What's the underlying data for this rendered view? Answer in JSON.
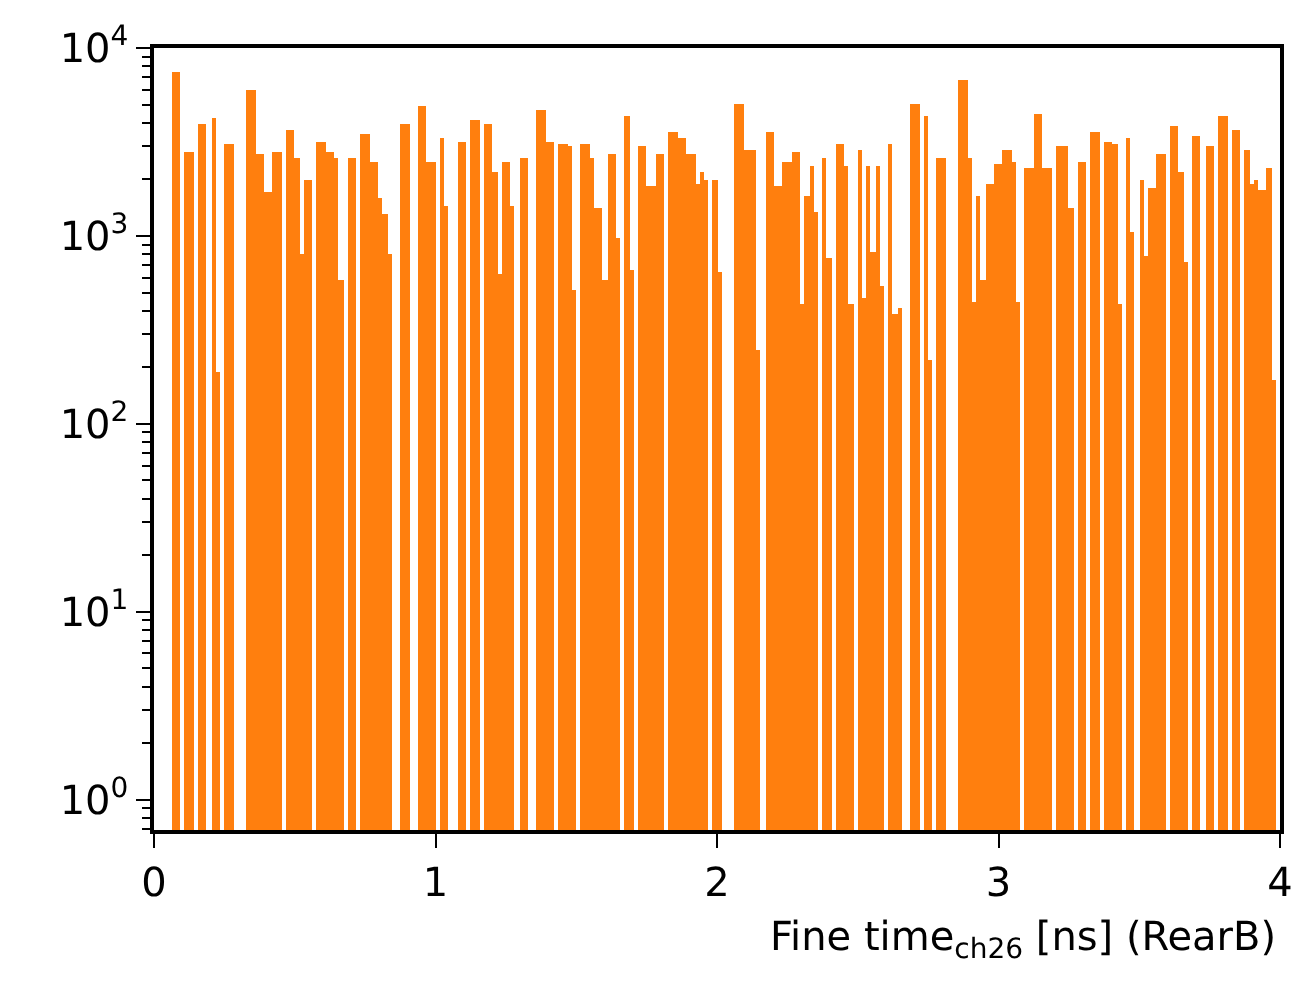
{
  "chart_data": {
    "type": "histogram",
    "xlabel": "Fine time$_{ch26}$ [ns] (RearB)",
    "color": "#ff7f0e",
    "log": "y",
    "xlim": [
      0,
      4
    ],
    "xticks": [
      0,
      1,
      2,
      3,
      4
    ],
    "ylim": [
      0.69,
      10000
    ],
    "yticks": [
      {
        "value": 1,
        "label": "10$^{0}$"
      },
      {
        "value": 10,
        "label": "10$^{1}$"
      },
      {
        "value": 100,
        "label": "10$^{2}$"
      },
      {
        "value": 1000,
        "label": "10$^{3}$"
      },
      {
        "value": 10000,
        "label": "10$^{4}$"
      }
    ],
    "bins": [
      0,
      0.015625,
      0.03125,
      0.046875,
      0.0625,
      0.078125,
      0.09375,
      0.109375,
      0.125,
      0.140625,
      0.15625,
      0.171875,
      0.1875,
      0.203125,
      0.21875,
      0.234375,
      0.25,
      0.265625,
      0.28125,
      0.296875,
      0.3125,
      0.328125,
      0.34375,
      0.359375,
      0.375,
      0.390625,
      0.40625,
      0.421875,
      0.4375,
      0.453125,
      0.46875,
      0.484375,
      0.5,
      0.515625,
      0.53125,
      0.546875,
      0.5625,
      0.578125,
      0.59375,
      0.609375,
      0.625,
      0.640625,
      0.65625,
      0.671875,
      0.6875,
      0.703125,
      0.71875,
      0.734375,
      0.75,
      0.765625,
      0.78125,
      0.796875,
      0.8125,
      0.828125,
      0.84375,
      0.859375,
      0.875,
      0.890625,
      0.90625,
      0.921875,
      0.9375,
      0.953125,
      0.96875,
      0.984375,
      1,
      1.015625,
      1.03125,
      1.046875,
      1.0625,
      1.078125,
      1.09375,
      1.109375,
      1.125,
      1.140625,
      1.15625,
      1.171875,
      1.1875,
      1.203125,
      1.21875,
      1.234375,
      1.25,
      1.265625,
      1.28125,
      1.296875,
      1.3125,
      1.328125,
      1.34375,
      1.359375,
      1.375,
      1.390625,
      1.40625,
      1.421875,
      1.4375,
      1.453125,
      1.46875,
      1.484375,
      1.5,
      1.515625,
      1.53125,
      1.546875,
      1.5625,
      1.578125,
      1.59375,
      1.609375,
      1.625,
      1.640625,
      1.65625,
      1.671875,
      1.6875,
      1.703125,
      1.71875,
      1.734375,
      1.75,
      1.765625,
      1.78125,
      1.796875,
      1.8125,
      1.828125,
      1.84375,
      1.859375,
      1.875,
      1.890625,
      1.90625,
      1.921875,
      1.9375,
      1.953125,
      1.96875,
      1.984375,
      2,
      2.015625,
      2.03125,
      2.046875,
      2.0625,
      2.078125,
      2.09375,
      2.109375,
      2.125,
      2.140625,
      2.15625,
      2.171875,
      2.1875,
      2.203125,
      2.21875,
      2.234375,
      2.25,
      2.265625,
      2.28125,
      2.296875,
      2.3125,
      2.328125,
      2.34375,
      2.359375,
      2.375,
      2.390625,
      2.40625,
      2.421875,
      2.4375,
      2.453125,
      2.46875,
      2.484375,
      2.5,
      2.515625,
      2.53125,
      2.546875,
      2.5625,
      2.578125,
      2.59375,
      2.609375,
      2.625,
      2.640625,
      2.65625,
      2.671875,
      2.6875,
      2.703125,
      2.71875,
      2.734375,
      2.75,
      2.765625,
      2.78125,
      2.796875,
      2.8125,
      2.828125,
      2.84375,
      2.859375,
      2.875,
      2.890625,
      2.90625,
      2.921875,
      2.9375,
      2.953125,
      2.96875,
      2.984375,
      3,
      3.015625,
      3.03125,
      3.046875,
      3.0625,
      3.078125,
      3.09375,
      3.109375,
      3.125,
      3.140625,
      3.15625,
      3.171875,
      3.1875,
      3.203125,
      3.21875,
      3.234375,
      3.25,
      3.265625,
      3.28125,
      3.296875,
      3.3125,
      3.328125,
      3.34375,
      3.359375,
      3.375,
      3.390625,
      3.40625,
      3.421875,
      3.4375,
      3.453125,
      3.46875,
      3.484375,
      3.5,
      3.515625,
      3.53125,
      3.546875,
      3.5625,
      3.578125,
      3.59375,
      3.609375,
      3.625,
      3.640625,
      3.65625,
      3.671875,
      3.6875,
      3.703125,
      3.71875,
      3.734375,
      3.75,
      3.765625,
      3.78125,
      3.796875,
      3.8125,
      3.828125,
      3.84375,
      3.859375,
      3.875,
      3.890625,
      3.90625,
      3.921875,
      3.9375,
      3.953125,
      3.96875,
      3.984375,
      4
    ],
    "values": [
      null,
      null,
      null,
      null,
      7400,
      7400,
      null,
      2800,
      2800,
      null,
      3900,
      3900,
      null,
      4200,
      190,
      null,
      3100,
      3100,
      null,
      null,
      null,
      6000,
      6000,
      2700,
      2700,
      1700,
      1700,
      2800,
      2800,
      null,
      3700,
      3700,
      2600,
      800,
      2000,
      2000,
      null,
      3200,
      3200,
      2800,
      2800,
      2600,
      580,
      null,
      2600,
      2600,
      null,
      3500,
      3500,
      2450,
      2450,
      1600,
      1300,
      800,
      null,
      null,
      3900,
      3900,
      null,
      null,
      4900,
      4900,
      2500,
      2500,
      null,
      3300,
      1450,
      null,
      null,
      3200,
      3200,
      null,
      4100,
      4100,
      null,
      3900,
      3900,
      2200,
      630,
      2450,
      2450,
      1450,
      null,
      2600,
      2600,
      null,
      null,
      4700,
      4700,
      3200,
      3200,
      null,
      3100,
      3100,
      3000,
      510,
      null,
      3100,
      3100,
      2600,
      1400,
      1400,
      580,
      2700,
      2700,
      970,
      null,
      4300,
      660,
      null,
      3000,
      3000,
      1850,
      1850,
      2700,
      2700,
      null,
      3550,
      3550,
      3350,
      3350,
      2700,
      2700,
      1900,
      2200,
      2000,
      null,
      2000,
      640,
      null,
      null,
      null,
      5000,
      5000,
      2900,
      2900,
      2850,
      250,
      null,
      3600,
      3600,
      1850,
      1850,
      2450,
      2450,
      2800,
      2800,
      430,
      1650,
      2350,
      1350,
      null,
      2600,
      760,
      null,
      3100,
      3100,
      2350,
      430,
      null,
      2900,
      470,
      2350,
      820,
      2350,
      540,
      null,
      3100,
      380,
      410,
      null,
      null,
      5000,
      5000,
      null,
      4300,
      220,
      null,
      2600,
      2600,
      null,
      null,
      null,
      6700,
      6700,
      2600,
      440,
      1650,
      590,
      1900,
      1900,
      2400,
      2400,
      2900,
      2900,
      2500,
      440,
      null,
      2300,
      2300,
      4500,
      4500,
      2300,
      2300,
      null,
      3000,
      3000,
      3000,
      1400,
      null,
      2450,
      2450,
      null,
      3600,
      3600,
      null,
      3200,
      3200,
      3100,
      430,
      null,
      3300,
      1050,
      null,
      2000,
      790,
      1800,
      1800,
      2700,
      2700,
      null,
      3800,
      3800,
      2200,
      720,
      null,
      3400,
      3400,
      null,
      3000,
      3000,
      null,
      4400,
      4400,
      null,
      3700,
      3700,
      null,
      2900,
      1900,
      2000,
      1750,
      1750,
      2300,
      170,
      null
    ]
  }
}
